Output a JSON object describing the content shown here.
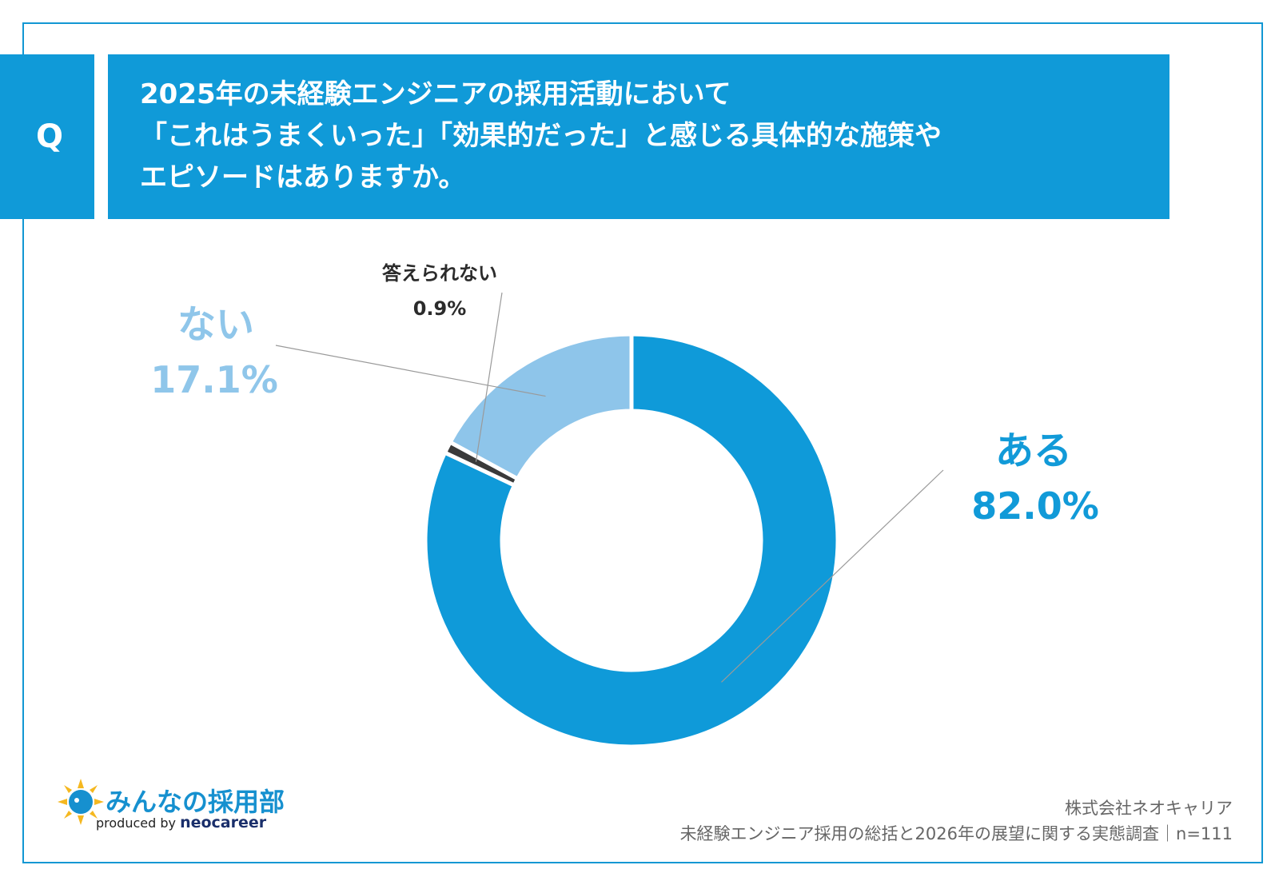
{
  "question": {
    "marker": "Q",
    "lines": [
      "2025年の未経験エンジニアの採用活動において",
      "「これはうまくいった」「効果的だった」と感じる具体的な施策や",
      "エピソードはありますか。"
    ]
  },
  "chart_data": {
    "type": "pie",
    "donut": true,
    "start_angle": "12 o'clock, clockwise",
    "slices": [
      {
        "label": "ある",
        "value": 82.0,
        "display": "82.0%",
        "color": "#0f9ad9"
      },
      {
        "label": "答えられない",
        "value": 0.9,
        "display": "0.9%",
        "color": "#3a3a3a"
      },
      {
        "label": "ない",
        "value": 17.1,
        "display": "17.1%",
        "color": "#8ec5ea"
      }
    ]
  },
  "logo": {
    "name": "みんなの採用部",
    "produced_by": "produced by",
    "brand": "neocareer"
  },
  "footer": {
    "company": "株式会社ネオキャリア",
    "survey": "未経験エンジニア採用の総括と2026年の展望に関する実態調査｜n=111"
  },
  "colors": {
    "accent": "#109ad8",
    "light": "#8ec5ea",
    "dark": "#3a3a3a"
  }
}
